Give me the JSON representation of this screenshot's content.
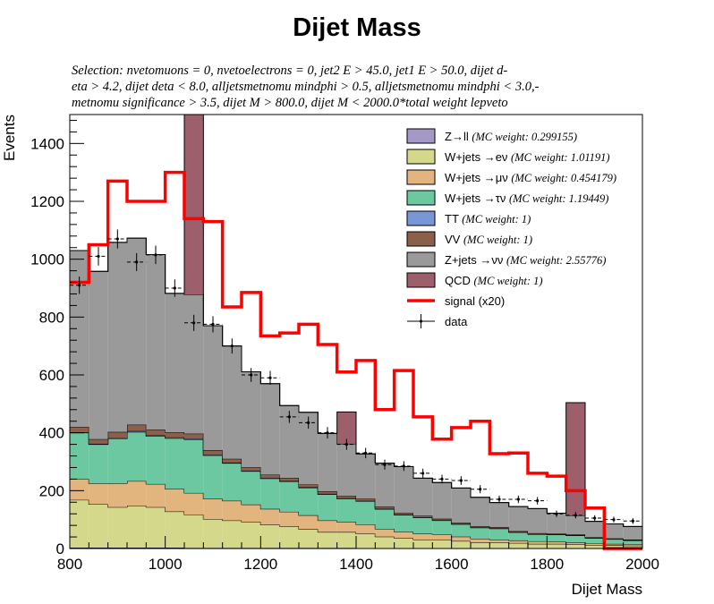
{
  "chart_data": {
    "type": "histogram-stack",
    "title": "Dijet Mass",
    "selection_lines": [
      "Selection: nvetomuons  =  0, nvetoelectrons  =  0, jet2 E > 45.0, jet1 E > 50.0, dijet d-",
      "eta > 4.2, dijet deta < 8.0, alljetsmetnomu mindphi > 0.5, alljetsmetnomu mindphi < 3.0,-",
      " metnomu significance > 3.5, dijet M > 800.0, dijet M < 2000.0*total weight lepveto"
    ],
    "xlabel": "Dijet Mass",
    "ylabel": "Events",
    "xlim": [
      800,
      2000
    ],
    "ylim": [
      0,
      1500
    ],
    "xticks": [
      800,
      1000,
      1200,
      1400,
      1600,
      1800,
      2000
    ],
    "yticks": [
      0,
      200,
      400,
      600,
      800,
      1000,
      1200,
      1400
    ],
    "bin_edges": [
      800,
      840,
      880,
      920,
      960,
      1000,
      1040,
      1080,
      1120,
      1160,
      1200,
      1240,
      1280,
      1320,
      1360,
      1400,
      1440,
      1480,
      1520,
      1560,
      1600,
      1640,
      1680,
      1720,
      1760,
      1800,
      1840,
      1880,
      1920,
      1960,
      2000
    ],
    "stack_order_bottom_to_top": [
      "zll",
      "wenu",
      "wmunu",
      "wtaunu",
      "tt",
      "vv",
      "znunu",
      "qcd"
    ],
    "series": [
      {
        "key": "zll",
        "name": "Z→ll",
        "weight": "(MC weight: 0.299155)",
        "color": "#a499c6",
        "values": [
          3,
          3,
          3,
          3,
          3,
          3,
          2,
          2,
          2,
          2,
          2,
          2,
          2,
          2,
          2,
          1,
          1,
          1,
          1,
          1,
          1,
          1,
          1,
          1,
          1,
          1,
          1,
          1,
          1,
          1
        ]
      },
      {
        "key": "wenu",
        "name": "W+jets →eν",
        "weight": "(MC weight: 1.01191)",
        "color": "#d3d88a",
        "values": [
          165,
          150,
          140,
          145,
          140,
          125,
          115,
          100,
          95,
          90,
          80,
          75,
          65,
          55,
          55,
          50,
          40,
          35,
          30,
          30,
          25,
          20,
          20,
          18,
          15,
          15,
          13,
          11,
          10,
          9
        ]
      },
      {
        "key": "wmunu",
        "name": "W+jets →μν",
        "weight": "(MC weight: 0.454179)",
        "color": "#e2b57f",
        "values": [
          72,
          72,
          82,
          85,
          80,
          78,
          75,
          70,
          68,
          60,
          55,
          50,
          48,
          40,
          35,
          32,
          27,
          22,
          20,
          18,
          15,
          13,
          10,
          9,
          9,
          8,
          7,
          6,
          5,
          5
        ]
      },
      {
        "key": "wtaunu",
        "name": "W+jets →τν",
        "weight": "(MC weight: 1.19449)",
        "color": "#6cc8a0",
        "values": [
          160,
          135,
          155,
          170,
          165,
          175,
          185,
          150,
          130,
          115,
          105,
          105,
          95,
          90,
          80,
          80,
          68,
          58,
          56,
          48,
          43,
          38,
          38,
          28,
          24,
          24,
          24,
          18,
          16,
          13
        ]
      },
      {
        "key": "tt",
        "name": "TT",
        "weight": "(MC weight: 1)",
        "color": "#7897d5",
        "values": [
          2,
          2,
          3,
          3,
          3,
          3,
          3,
          2,
          2,
          2,
          2,
          2,
          2,
          2,
          2,
          2,
          2,
          1,
          1,
          1,
          1,
          1,
          1,
          1,
          1,
          1,
          1,
          1,
          1,
          1
        ]
      },
      {
        "key": "vv",
        "name": "VV",
        "weight": "(MC weight: 1)",
        "color": "#8c5f4b",
        "values": [
          18,
          16,
          20,
          22,
          20,
          18,
          17,
          16,
          13,
          12,
          11,
          10,
          9,
          9,
          8,
          7,
          7,
          6,
          5,
          5,
          4,
          4,
          4,
          3,
          3,
          3,
          3,
          2,
          2,
          2
        ]
      },
      {
        "key": "znunu",
        "name": "Z+jets →νν",
        "weight": "(MC weight: 2.55776)",
        "color": "#9a9a9a",
        "values": [
          610,
          580,
          655,
          645,
          605,
          480,
          480,
          430,
          390,
          330,
          315,
          250,
          250,
          200,
          180,
          155,
          150,
          160,
          130,
          125,
          120,
          100,
          85,
          85,
          85,
          70,
          65,
          55,
          50,
          45
        ]
      },
      {
        "key": "qcd",
        "name": "QCD",
        "weight": "(MC weight: 1)",
        "color": "#9e5f6d",
        "values": [
          0,
          0,
          0,
          0,
          0,
          0,
          640,
          0,
          0,
          0,
          0,
          0,
          0,
          0,
          110,
          0,
          0,
          0,
          0,
          0,
          0,
          0,
          0,
          0,
          0,
          0,
          390,
          0,
          0,
          0
        ]
      }
    ],
    "signal": {
      "name": "signal (x20)",
      "color": "#ff0000",
      "values": [
        920,
        1050,
        1270,
        1200,
        1200,
        1300,
        1140,
        1130,
        835,
        885,
        735,
        745,
        775,
        705,
        610,
        650,
        480,
        615,
        455,
        378,
        418,
        440,
        328,
        330,
        260,
        250,
        200,
        140,
        0,
        0
      ]
    },
    "data": {
      "name": "data",
      "color": "#000000",
      "values": [
        910,
        1010,
        1070,
        990,
        1015,
        900,
        780,
        775,
        700,
        600,
        590,
        455,
        435,
        400,
        360,
        330,
        290,
        285,
        260,
        240,
        235,
        205,
        170,
        170,
        165,
        120,
        115,
        105,
        100,
        95
      ],
      "errors": [
        30,
        32,
        33,
        31,
        32,
        30,
        28,
        28,
        26,
        24,
        24,
        21,
        21,
        20,
        19,
        18,
        17,
        17,
        16,
        15,
        15,
        14,
        13,
        13,
        13,
        11,
        11,
        10,
        10,
        10
      ]
    }
  }
}
